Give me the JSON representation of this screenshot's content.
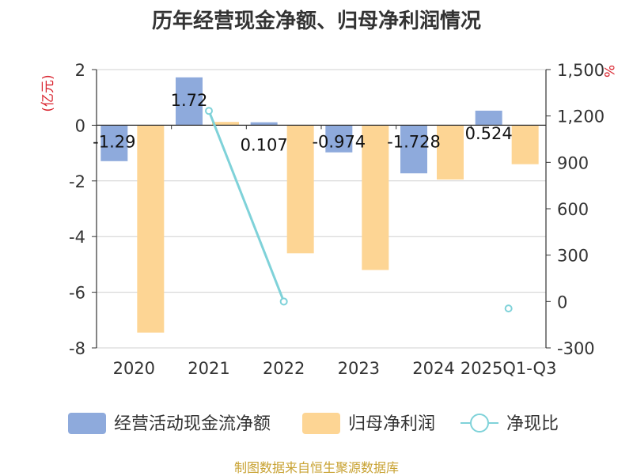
{
  "title": "历年经营现金净额、归母净利润情况",
  "source": "制图数据来自恒生聚源数据库",
  "chart_data": {
    "type": "bar",
    "title": "历年经营现金净额、归母净利润情况",
    "categories": [
      "2020",
      "2021",
      "2022",
      "2023",
      "2024",
      "2025Q1-Q3"
    ],
    "y_left": {
      "label": "(亿元)",
      "range": [
        -8,
        2
      ],
      "ticks": [
        "2",
        "0",
        "-2",
        "-4",
        "-6",
        "-8"
      ],
      "tick_values": [
        2,
        0,
        -2,
        -4,
        -6,
        -8
      ]
    },
    "y_right": {
      "label": "%",
      "range": [
        -300,
        1500
      ],
      "ticks": [
        "1,500",
        "1,200",
        "900",
        "600",
        "300",
        "0",
        "-300"
      ],
      "tick_values": [
        1500,
        1200,
        900,
        600,
        300,
        0,
        -300
      ]
    },
    "grid": true,
    "legend_position": "bottom",
    "series": [
      {
        "name": "经营活动现金流净额",
        "axis": "left",
        "kind": "bar",
        "color": "#8eaadc",
        "values": [
          -1.29,
          1.72,
          0.107,
          -0.974,
          -1.728,
          0.524
        ],
        "labels": [
          "-1.29",
          "1.72",
          "0.107",
          "-0.974",
          "-1.728",
          "0.524"
        ]
      },
      {
        "name": "归母净利润",
        "axis": "left",
        "kind": "bar",
        "color": "#fdd594",
        "values": [
          -7.45,
          0.12,
          -4.6,
          -5.2,
          -1.95,
          -1.4
        ]
      },
      {
        "name": "净现比",
        "axis": "right",
        "kind": "line",
        "color": "#7fd2d9",
        "values": [
          null,
          1233,
          0,
          null,
          null,
          -45
        ]
      }
    ]
  }
}
